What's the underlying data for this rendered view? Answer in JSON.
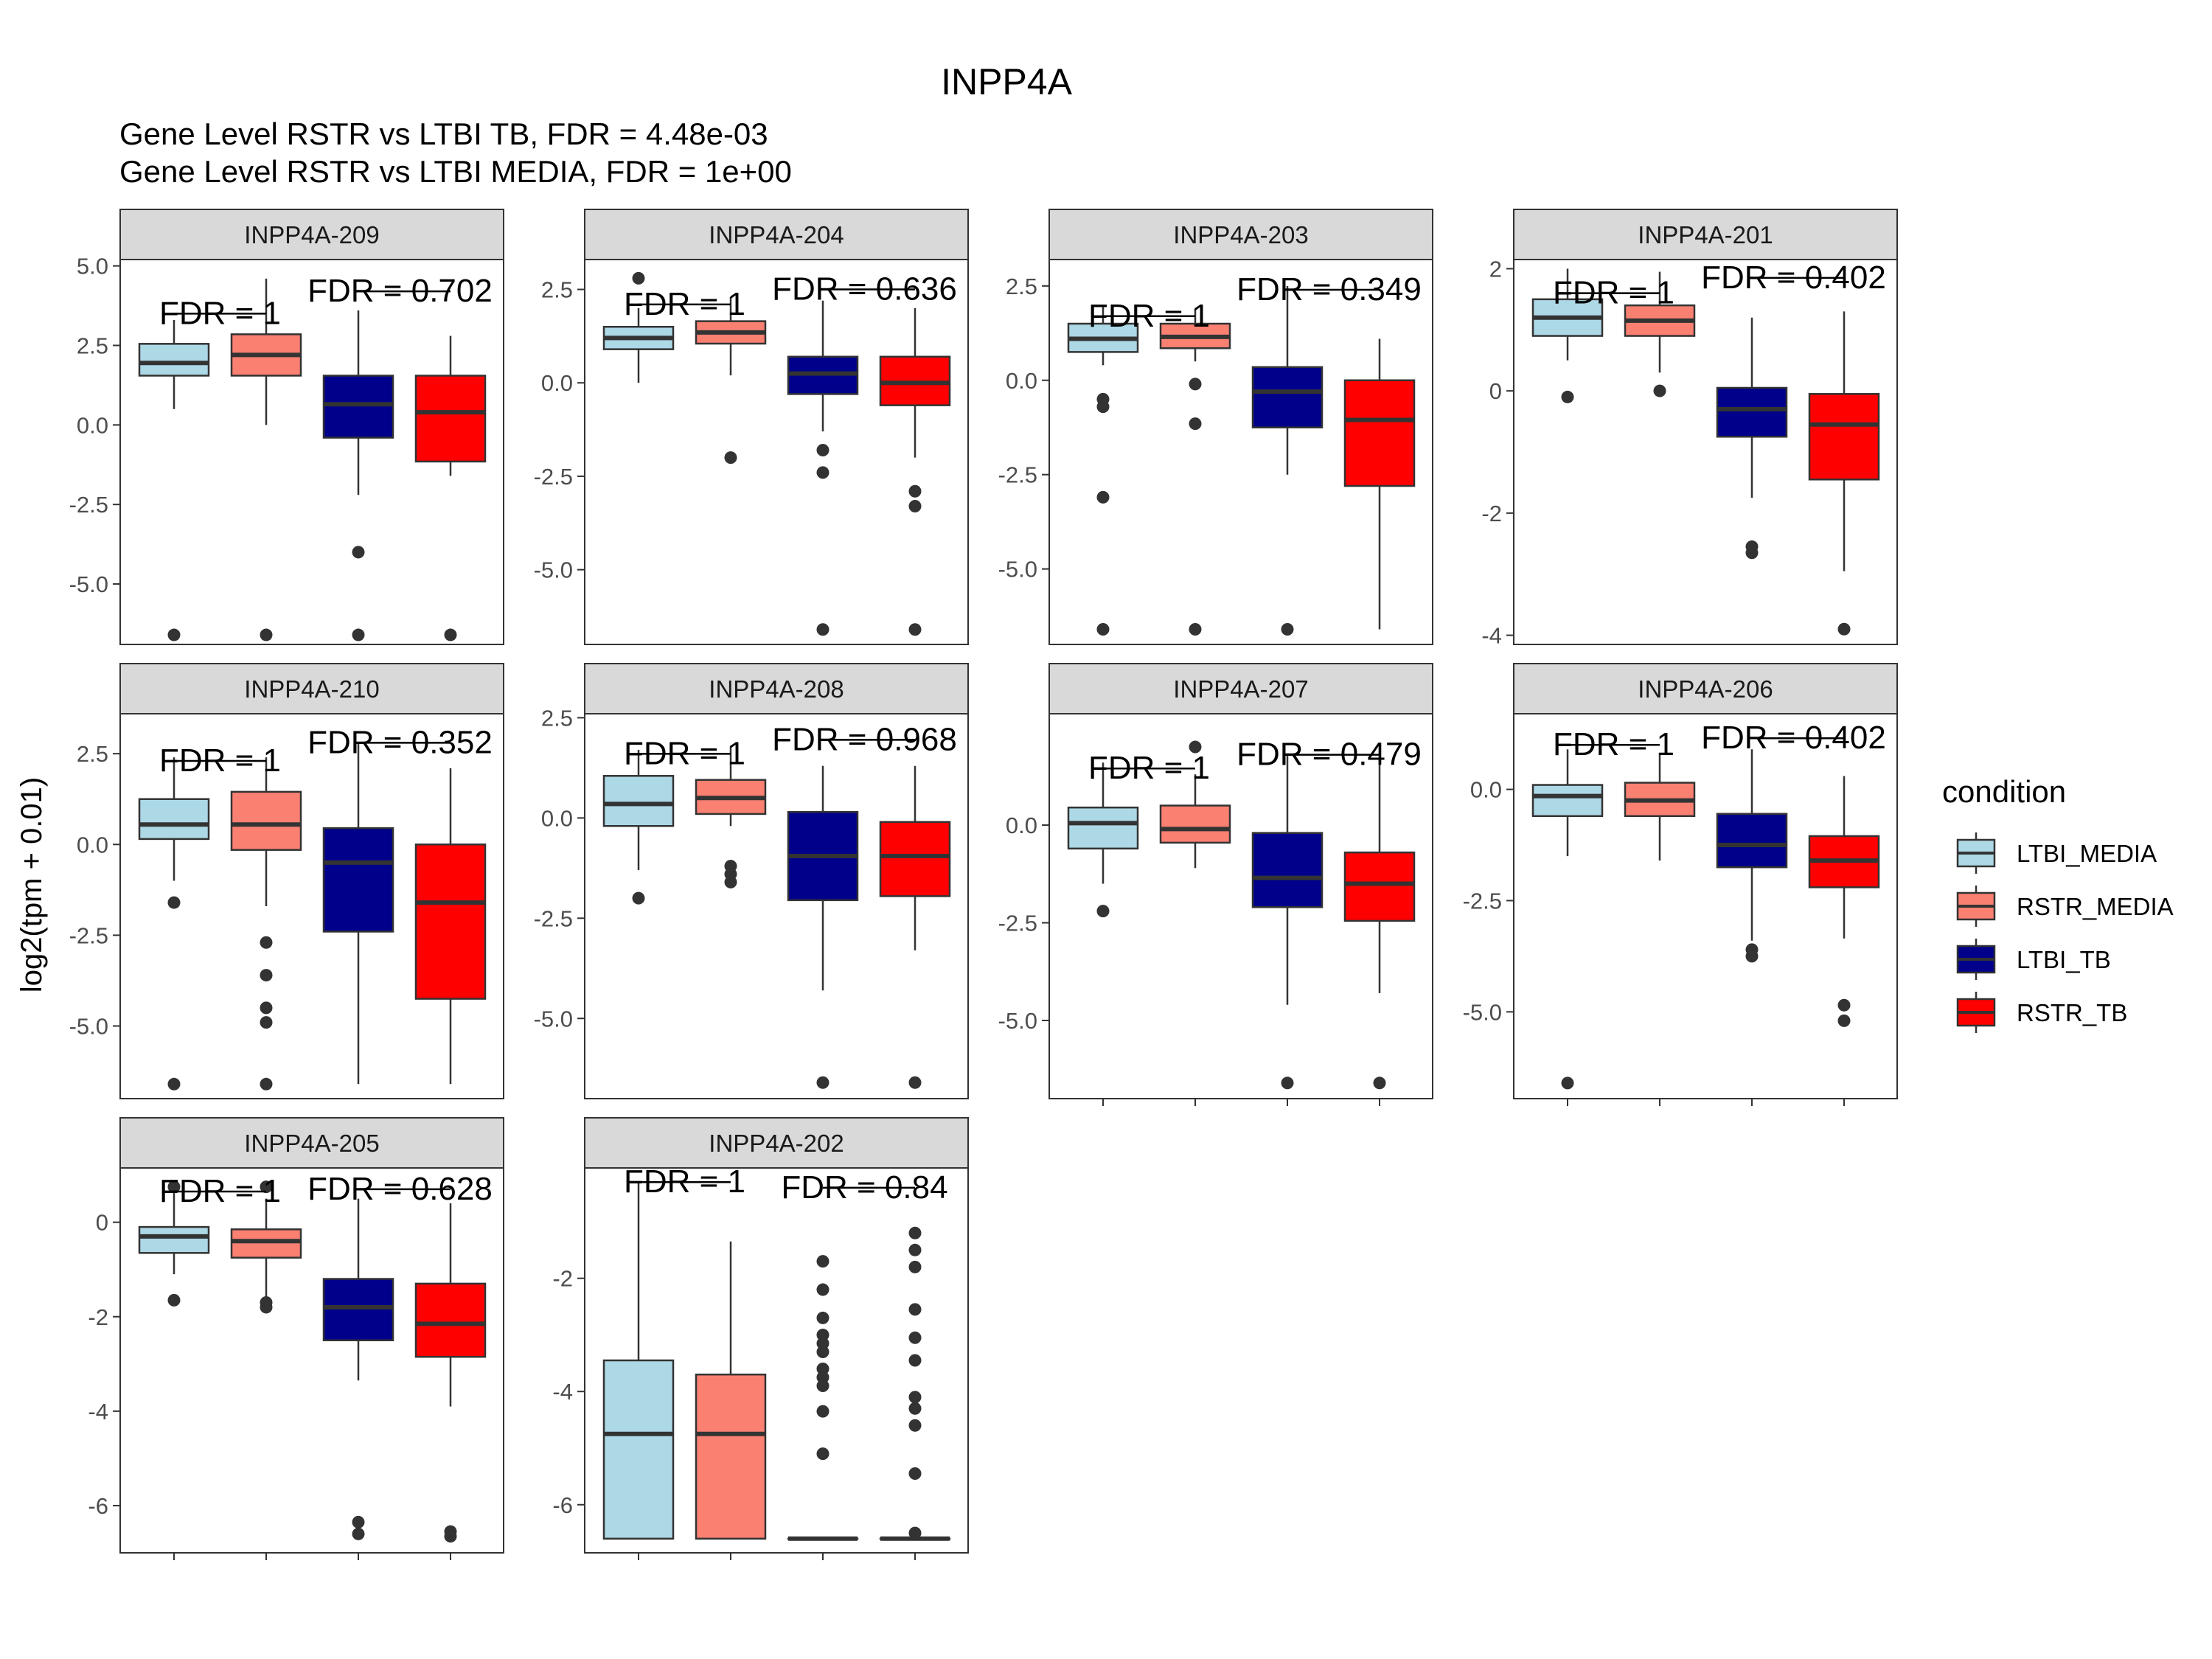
{
  "chart_data": {
    "type": "boxplot",
    "title": "INPP4A",
    "subtitle_lines": [
      "Gene Level RSTR vs LTBI TB, FDR =  4.48e-03",
      "Gene Level RSTR vs LTBI MEDIA, FDR =  1e+00"
    ],
    "ylabel": "log2(tpm + 0.01)",
    "legend": {
      "title": "condition",
      "position": "right",
      "items": [
        {
          "label": "LTBI_MEDIA",
          "color": "#ADD8E6"
        },
        {
          "label": "RSTR_MEDIA",
          "color": "#FA8072"
        },
        {
          "label": "LTBI_TB",
          "color": "#00008B"
        },
        {
          "label": "RSTR_TB",
          "color": "#FF0000"
        }
      ]
    },
    "conditions": [
      "LTBI_MEDIA",
      "RSTR_MEDIA",
      "LTBI_TB",
      "RSTR_TB"
    ],
    "panels": [
      {
        "name": "INPP4A-209",
        "ylim": [
          -6.9,
          5.2
        ],
        "ticks": [
          {
            "v": 5,
            "label": "5.0"
          },
          {
            "v": 2.5,
            "label": "2.5"
          },
          {
            "v": 0,
            "label": "0.0"
          },
          {
            "v": -2.5,
            "label": "-2.5"
          },
          {
            "v": -5,
            "label": "-5.0"
          }
        ],
        "fdr_media": "FDR =  1",
        "fdr_tb": "FDR =  0.702",
        "bracket_media_y": 3.5,
        "bracket_tb_y": 4.2,
        "boxes": [
          {
            "whisker_low": 0.5,
            "q1": 1.55,
            "median": 1.95,
            "q3": 2.55,
            "whisker_high": 3.3,
            "outliers": [
              -6.6
            ]
          },
          {
            "whisker_low": 0.0,
            "q1": 1.55,
            "median": 2.2,
            "q3": 2.85,
            "whisker_high": 4.6,
            "outliers": [
              -6.6
            ]
          },
          {
            "whisker_low": -2.2,
            "q1": -0.4,
            "median": 0.65,
            "q3": 1.55,
            "whisker_high": 3.6,
            "outliers": [
              -4.0,
              -6.6
            ]
          },
          {
            "whisker_low": -1.6,
            "q1": -1.15,
            "median": 0.4,
            "q3": 1.55,
            "whisker_high": 2.8,
            "outliers": [
              -6.6
            ]
          }
        ]
      },
      {
        "name": "INPP4A-204",
        "ylim": [
          -7.0,
          3.3
        ],
        "ticks": [
          {
            "v": 2.5,
            "label": "2.5"
          },
          {
            "v": 0,
            "label": "0.0"
          },
          {
            "v": -2.5,
            "label": "-2.5"
          },
          {
            "v": -5,
            "label": "-5.0"
          }
        ],
        "fdr_media": "FDR =  1",
        "fdr_tb": "FDR =  0.636",
        "bracket_media_y": 2.1,
        "bracket_tb_y": 2.5,
        "boxes": [
          {
            "whisker_low": 0.0,
            "q1": 0.9,
            "median": 1.2,
            "q3": 1.5,
            "whisker_high": 2.0,
            "outliers": [
              2.8
            ]
          },
          {
            "whisker_low": 0.2,
            "q1": 1.05,
            "median": 1.35,
            "q3": 1.65,
            "whisker_high": 2.3,
            "outliers": [
              -2.0
            ]
          },
          {
            "whisker_low": -1.3,
            "q1": -0.3,
            "median": 0.25,
            "q3": 0.7,
            "whisker_high": 2.2,
            "outliers": [
              -1.8,
              -2.4,
              -6.6
            ]
          },
          {
            "whisker_low": -2.0,
            "q1": -0.6,
            "median": 0.0,
            "q3": 0.7,
            "whisker_high": 2.0,
            "outliers": [
              -2.9,
              -3.3,
              -6.6
            ]
          }
        ]
      },
      {
        "name": "INPP4A-203",
        "ylim": [
          -7.0,
          3.2
        ],
        "ticks": [
          {
            "v": 2.5,
            "label": "2.5"
          },
          {
            "v": 0,
            "label": "0.0"
          },
          {
            "v": -2.5,
            "label": "-2.5"
          },
          {
            "v": -5,
            "label": "-5.0"
          }
        ],
        "fdr_media": "FDR =  1",
        "fdr_tb": "FDR =  0.349",
        "bracket_media_y": 1.7,
        "bracket_tb_y": 2.4,
        "boxes": [
          {
            "whisker_low": 0.4,
            "q1": 0.75,
            "median": 1.1,
            "q3": 1.5,
            "whisker_high": 2.0,
            "outliers": [
              -0.5,
              -0.7,
              -3.1,
              -6.6
            ]
          },
          {
            "whisker_low": 0.5,
            "q1": 0.85,
            "median": 1.15,
            "q3": 1.5,
            "whisker_high": 1.9,
            "outliers": [
              -0.1,
              -1.15,
              -6.6
            ]
          },
          {
            "whisker_low": -2.5,
            "q1": -1.25,
            "median": -0.3,
            "q3": 0.35,
            "whisker_high": 2.5,
            "outliers": [
              -6.6
            ]
          },
          {
            "whisker_low": -6.6,
            "q1": -2.8,
            "median": -1.05,
            "q3": 0.0,
            "whisker_high": 1.1,
            "outliers": []
          }
        ]
      },
      {
        "name": "INPP4A-201",
        "ylim": [
          -4.15,
          2.15
        ],
        "ticks": [
          {
            "v": 2,
            "label": "2"
          },
          {
            "v": 0,
            "label": "0"
          },
          {
            "v": -2,
            "label": "-2"
          },
          {
            "v": -4,
            "label": "-4"
          }
        ],
        "fdr_media": "FDR =  1",
        "fdr_tb": "FDR =  0.402",
        "bracket_media_y": 1.6,
        "bracket_tb_y": 1.85,
        "boxes": [
          {
            "whisker_low": 0.5,
            "q1": 0.9,
            "median": 1.2,
            "q3": 1.5,
            "whisker_high": 2.0,
            "outliers": [
              -0.1
            ]
          },
          {
            "whisker_low": 0.3,
            "q1": 0.9,
            "median": 1.15,
            "q3": 1.4,
            "whisker_high": 1.95,
            "outliers": [
              0.0
            ]
          },
          {
            "whisker_low": -1.75,
            "q1": -0.75,
            "median": -0.3,
            "q3": 0.05,
            "whisker_high": 1.2,
            "outliers": [
              -2.55,
              -2.65
            ]
          },
          {
            "whisker_low": -2.95,
            "q1": -1.45,
            "median": -0.55,
            "q3": -0.05,
            "whisker_high": 1.3,
            "outliers": [
              -3.9
            ]
          }
        ]
      },
      {
        "name": "INPP4A-210",
        "ylim": [
          -7.0,
          3.6
        ],
        "ticks": [
          {
            "v": 2.5,
            "label": "2.5"
          },
          {
            "v": 0,
            "label": "0.0"
          },
          {
            "v": -2.5,
            "label": "-2.5"
          },
          {
            "v": -5,
            "label": "-5.0"
          }
        ],
        "fdr_media": "FDR =  1",
        "fdr_tb": "FDR =  0.352",
        "bracket_media_y": 2.3,
        "bracket_tb_y": 2.8,
        "boxes": [
          {
            "whisker_low": -1.0,
            "q1": 0.15,
            "median": 0.55,
            "q3": 1.25,
            "whisker_high": 2.4,
            "outliers": [
              -1.6,
              -6.6
            ]
          },
          {
            "whisker_low": -1.7,
            "q1": -0.15,
            "median": 0.55,
            "q3": 1.45,
            "whisker_high": 2.4,
            "outliers": [
              -2.7,
              -3.6,
              -4.5,
              -4.9,
              -6.6
            ]
          },
          {
            "whisker_low": -6.6,
            "q1": -2.4,
            "median": -0.5,
            "q3": 0.45,
            "whisker_high": 2.8,
            "outliers": []
          },
          {
            "whisker_low": -6.6,
            "q1": -4.25,
            "median": -1.6,
            "q3": 0.0,
            "whisker_high": 2.1,
            "outliers": []
          }
        ]
      },
      {
        "name": "INPP4A-208",
        "ylim": [
          -7.0,
          2.6
        ],
        "ticks": [
          {
            "v": 2.5,
            "label": "2.5"
          },
          {
            "v": 0,
            "label": "0.0"
          },
          {
            "v": -2.5,
            "label": "-2.5"
          },
          {
            "v": -5,
            "label": "-5.0"
          }
        ],
        "fdr_media": "FDR =  1",
        "fdr_tb": "FDR =  0.968",
        "bracket_media_y": 1.6,
        "bracket_tb_y": 1.95,
        "boxes": [
          {
            "whisker_low": -1.3,
            "q1": -0.2,
            "median": 0.35,
            "q3": 1.05,
            "whisker_high": 1.7,
            "outliers": [
              -2.0
            ]
          },
          {
            "whisker_low": -0.2,
            "q1": 0.1,
            "median": 0.5,
            "q3": 0.95,
            "whisker_high": 1.8,
            "outliers": [
              -1.2,
              -1.4,
              -1.6
            ]
          },
          {
            "whisker_low": -4.3,
            "q1": -2.05,
            "median": -0.95,
            "q3": 0.15,
            "whisker_high": 1.3,
            "outliers": [
              -6.6
            ]
          },
          {
            "whisker_low": -3.3,
            "q1": -1.95,
            "median": -0.95,
            "q3": -0.1,
            "whisker_high": 1.3,
            "outliers": [
              -6.6
            ]
          }
        ]
      },
      {
        "name": "INPP4A-207",
        "ylim": [
          -7.0,
          2.85
        ],
        "ticks": [
          {
            "v": 0,
            "label": "0.0"
          },
          {
            "v": -2.5,
            "label": "-2.5"
          },
          {
            "v": -5,
            "label": "-5.0"
          }
        ],
        "fdr_media": "FDR =  1",
        "fdr_tb": "FDR =  0.479",
        "bracket_media_y": 1.45,
        "bracket_tb_y": 1.8,
        "boxes": [
          {
            "whisker_low": -1.5,
            "q1": -0.6,
            "median": 0.05,
            "q3": 0.45,
            "whisker_high": 1.6,
            "outliers": [
              -2.2
            ]
          },
          {
            "whisker_low": -1.1,
            "q1": -0.45,
            "median": -0.1,
            "q3": 0.5,
            "whisker_high": 1.3,
            "outliers": [
              2.0
            ]
          },
          {
            "whisker_low": -4.6,
            "q1": -2.1,
            "median": -1.35,
            "q3": -0.2,
            "whisker_high": 1.8,
            "outliers": [
              -6.6
            ]
          },
          {
            "whisker_low": -4.3,
            "q1": -2.45,
            "median": -1.5,
            "q3": -0.7,
            "whisker_high": 1.7,
            "outliers": [
              -6.6
            ]
          }
        ]
      },
      {
        "name": "INPP4A-206",
        "ylim": [
          -6.95,
          1.7
        ],
        "ticks": [
          {
            "v": 0,
            "label": "0.0"
          },
          {
            "v": -2.5,
            "label": "-2.5"
          },
          {
            "v": -5,
            "label": "-5.0"
          }
        ],
        "fdr_media": "FDR =  1",
        "fdr_tb": "FDR =  0.402",
        "bracket_media_y": 1.0,
        "bracket_tb_y": 1.15,
        "boxes": [
          {
            "whisker_low": -1.5,
            "q1": -0.6,
            "median": -0.15,
            "q3": 0.1,
            "whisker_high": 0.9,
            "outliers": [
              -6.6
            ]
          },
          {
            "whisker_low": -1.6,
            "q1": -0.6,
            "median": -0.25,
            "q3": 0.15,
            "whisker_high": 0.8,
            "outliers": []
          },
          {
            "whisker_low": -3.4,
            "q1": -1.75,
            "median": -1.25,
            "q3": -0.55,
            "whisker_high": 0.9,
            "outliers": [
              -3.6,
              -3.75
            ]
          },
          {
            "whisker_low": -3.35,
            "q1": -2.2,
            "median": -1.6,
            "q3": -1.05,
            "whisker_high": 0.3,
            "outliers": [
              -4.85,
              -5.2
            ]
          }
        ]
      },
      {
        "name": "INPP4A-205",
        "ylim": [
          -7.0,
          1.15
        ],
        "ticks": [
          {
            "v": 0,
            "label": "0"
          },
          {
            "v": -2,
            "label": "-2"
          },
          {
            "v": -4,
            "label": "-4"
          },
          {
            "v": -6,
            "label": "-6"
          }
        ],
        "fdr_media": "FDR =  1",
        "fdr_tb": "FDR =  0.628",
        "bracket_media_y": 0.65,
        "bracket_tb_y": 0.7,
        "boxes": [
          {
            "whisker_low": -1.1,
            "q1": -0.65,
            "median": -0.3,
            "q3": -0.1,
            "whisker_high": 0.7,
            "outliers": [
              -1.65,
              0.75
            ]
          },
          {
            "whisker_low": -1.6,
            "q1": -0.75,
            "median": -0.4,
            "q3": -0.15,
            "whisker_high": 0.5,
            "outliers": [
              -1.7,
              -1.8,
              0.75
            ]
          },
          {
            "whisker_low": -3.35,
            "q1": -2.5,
            "median": -1.8,
            "q3": -1.2,
            "whisker_high": 0.5,
            "outliers": [
              -6.35,
              -6.6
            ]
          },
          {
            "whisker_low": -3.9,
            "q1": -2.85,
            "median": -2.15,
            "q3": -1.3,
            "whisker_high": 0.4,
            "outliers": [
              -6.55,
              -6.65
            ]
          }
        ]
      },
      {
        "name": "INPP4A-202",
        "ylim": [
          -6.85,
          -0.05
        ],
        "ticks": [
          {
            "v": -2,
            "label": "-2"
          },
          {
            "v": -4,
            "label": "-4"
          },
          {
            "v": -6,
            "label": "-6"
          }
        ],
        "fdr_media": "FDR =  1",
        "fdr_tb": "FDR =  0.84",
        "bracket_media_y": -0.3,
        "bracket_tb_y": -0.4,
        "boxes": [
          {
            "whisker_low": -6.6,
            "q1": -6.6,
            "median": -4.75,
            "q3": -3.45,
            "whisker_high": -0.3,
            "outliers": []
          },
          {
            "whisker_low": -6.6,
            "q1": -6.6,
            "median": -4.75,
            "q3": -3.7,
            "whisker_high": -1.35,
            "outliers": []
          },
          {
            "whisker_low": -6.6,
            "q1": -6.6,
            "median": -6.6,
            "q3": -6.6,
            "whisker_high": -6.6,
            "outliers": [
              -1.7,
              -2.2,
              -2.7,
              -3.0,
              -3.15,
              -3.3,
              -3.6,
              -3.75,
              -3.9,
              -4.35,
              -5.1
            ]
          },
          {
            "whisker_low": -6.6,
            "q1": -6.6,
            "median": -6.6,
            "q3": -6.6,
            "whisker_high": -6.6,
            "outliers": [
              -1.2,
              -1.5,
              -1.8,
              -2.55,
              -3.05,
              -3.45,
              -4.1,
              -4.3,
              -4.6,
              -5.45,
              -6.5
            ]
          }
        ]
      }
    ]
  }
}
